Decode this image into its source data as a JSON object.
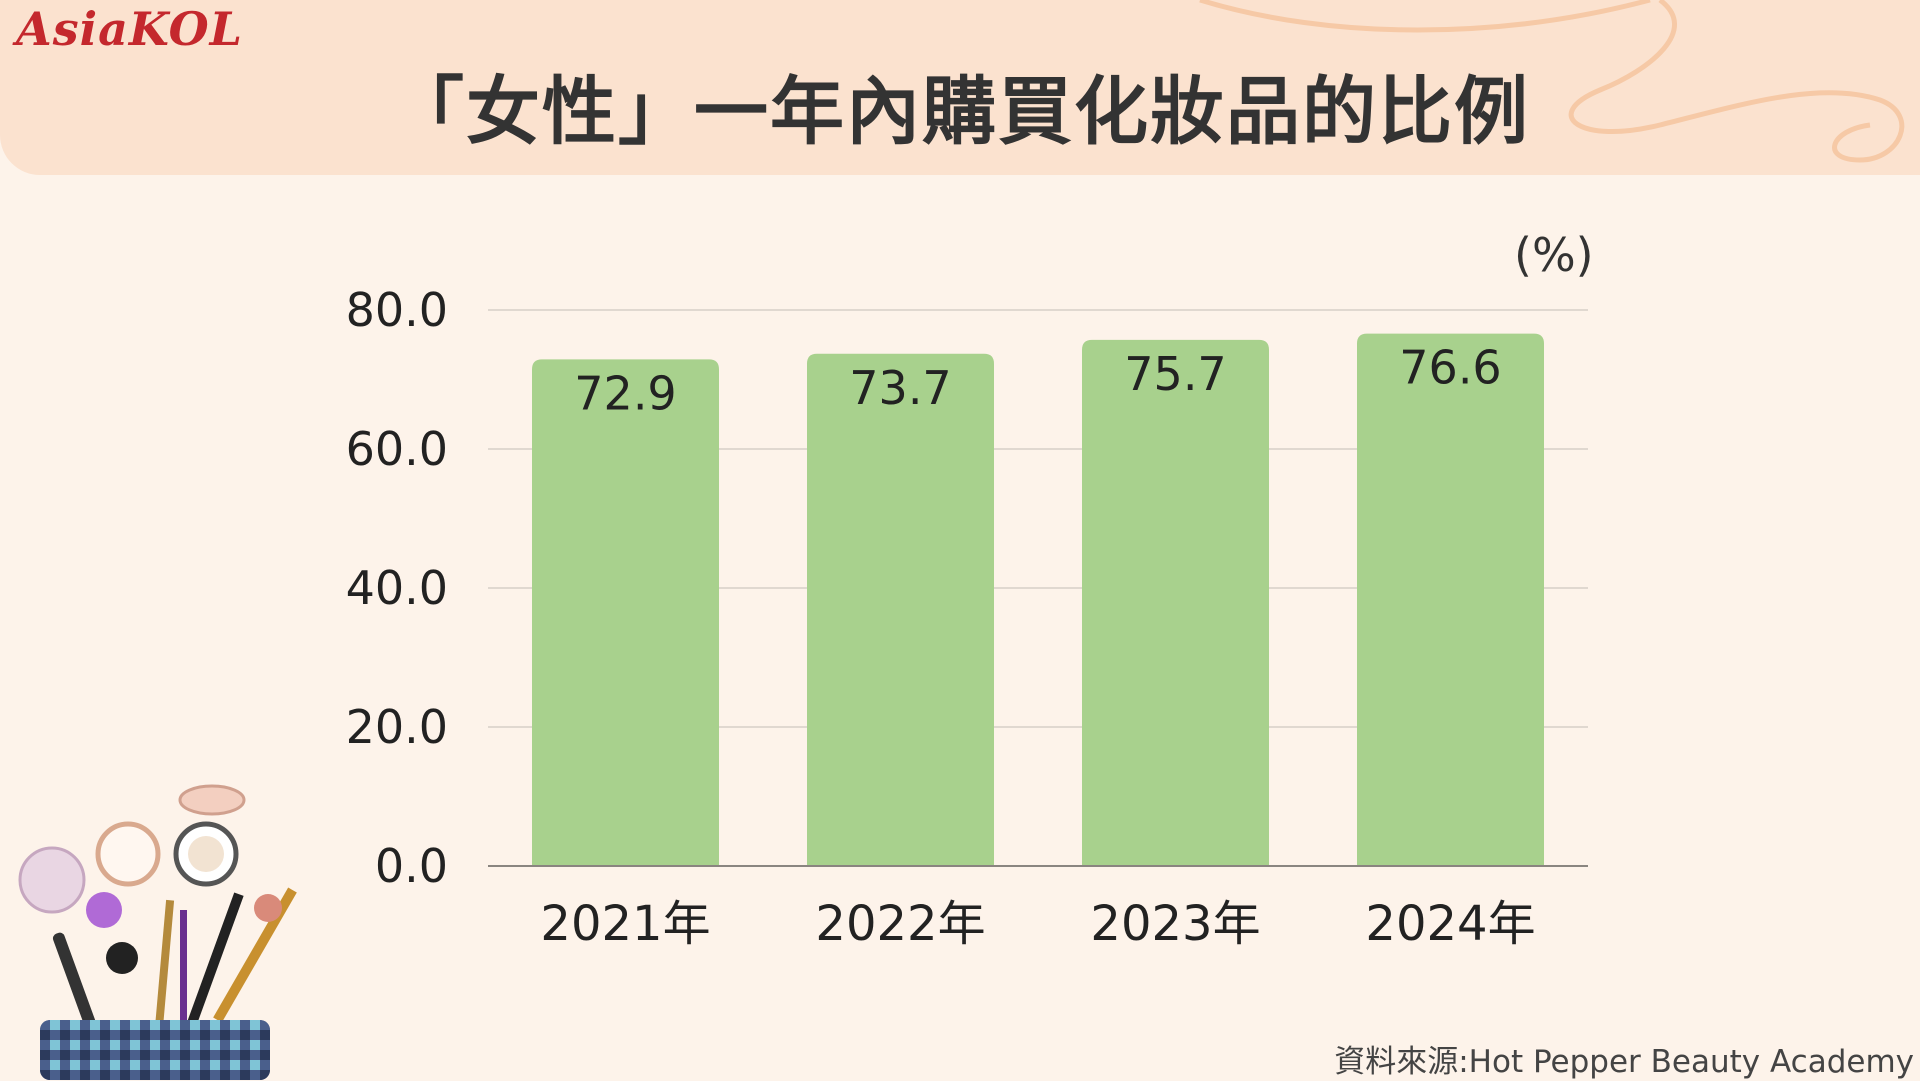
{
  "brand": {
    "logo_text": "AsiaKOL"
  },
  "title": "「女性」一年內購買化妝品的比例",
  "unit_label": "(%)",
  "source_text": "資料來源:Hot Pepper Beauty Academy",
  "colors": {
    "bar": "#a8d18d",
    "header_bg": "#fbe2cf",
    "page_bg": "#fdf3ea",
    "logo": "#c4282d",
    "text": "#222222",
    "grid": "#d6d0c8"
  },
  "chart_data": {
    "type": "bar",
    "title": "「女性」一年內購買化妝品的比例",
    "xlabel": "",
    "ylabel": "(%)",
    "categories": [
      "2021年",
      "2022年",
      "2023年",
      "2024年"
    ],
    "values": [
      72.9,
      73.7,
      75.7,
      76.6
    ],
    "value_labels": [
      "72.9",
      "73.7",
      "75.7",
      "76.6"
    ],
    "ylim": [
      0,
      80
    ],
    "yticks": [
      0,
      20,
      40,
      60,
      80
    ],
    "ytick_labels": [
      "0.0",
      "20.0",
      "40.0",
      "60.0",
      "80.0"
    ],
    "grid": true,
    "legend": "none"
  }
}
